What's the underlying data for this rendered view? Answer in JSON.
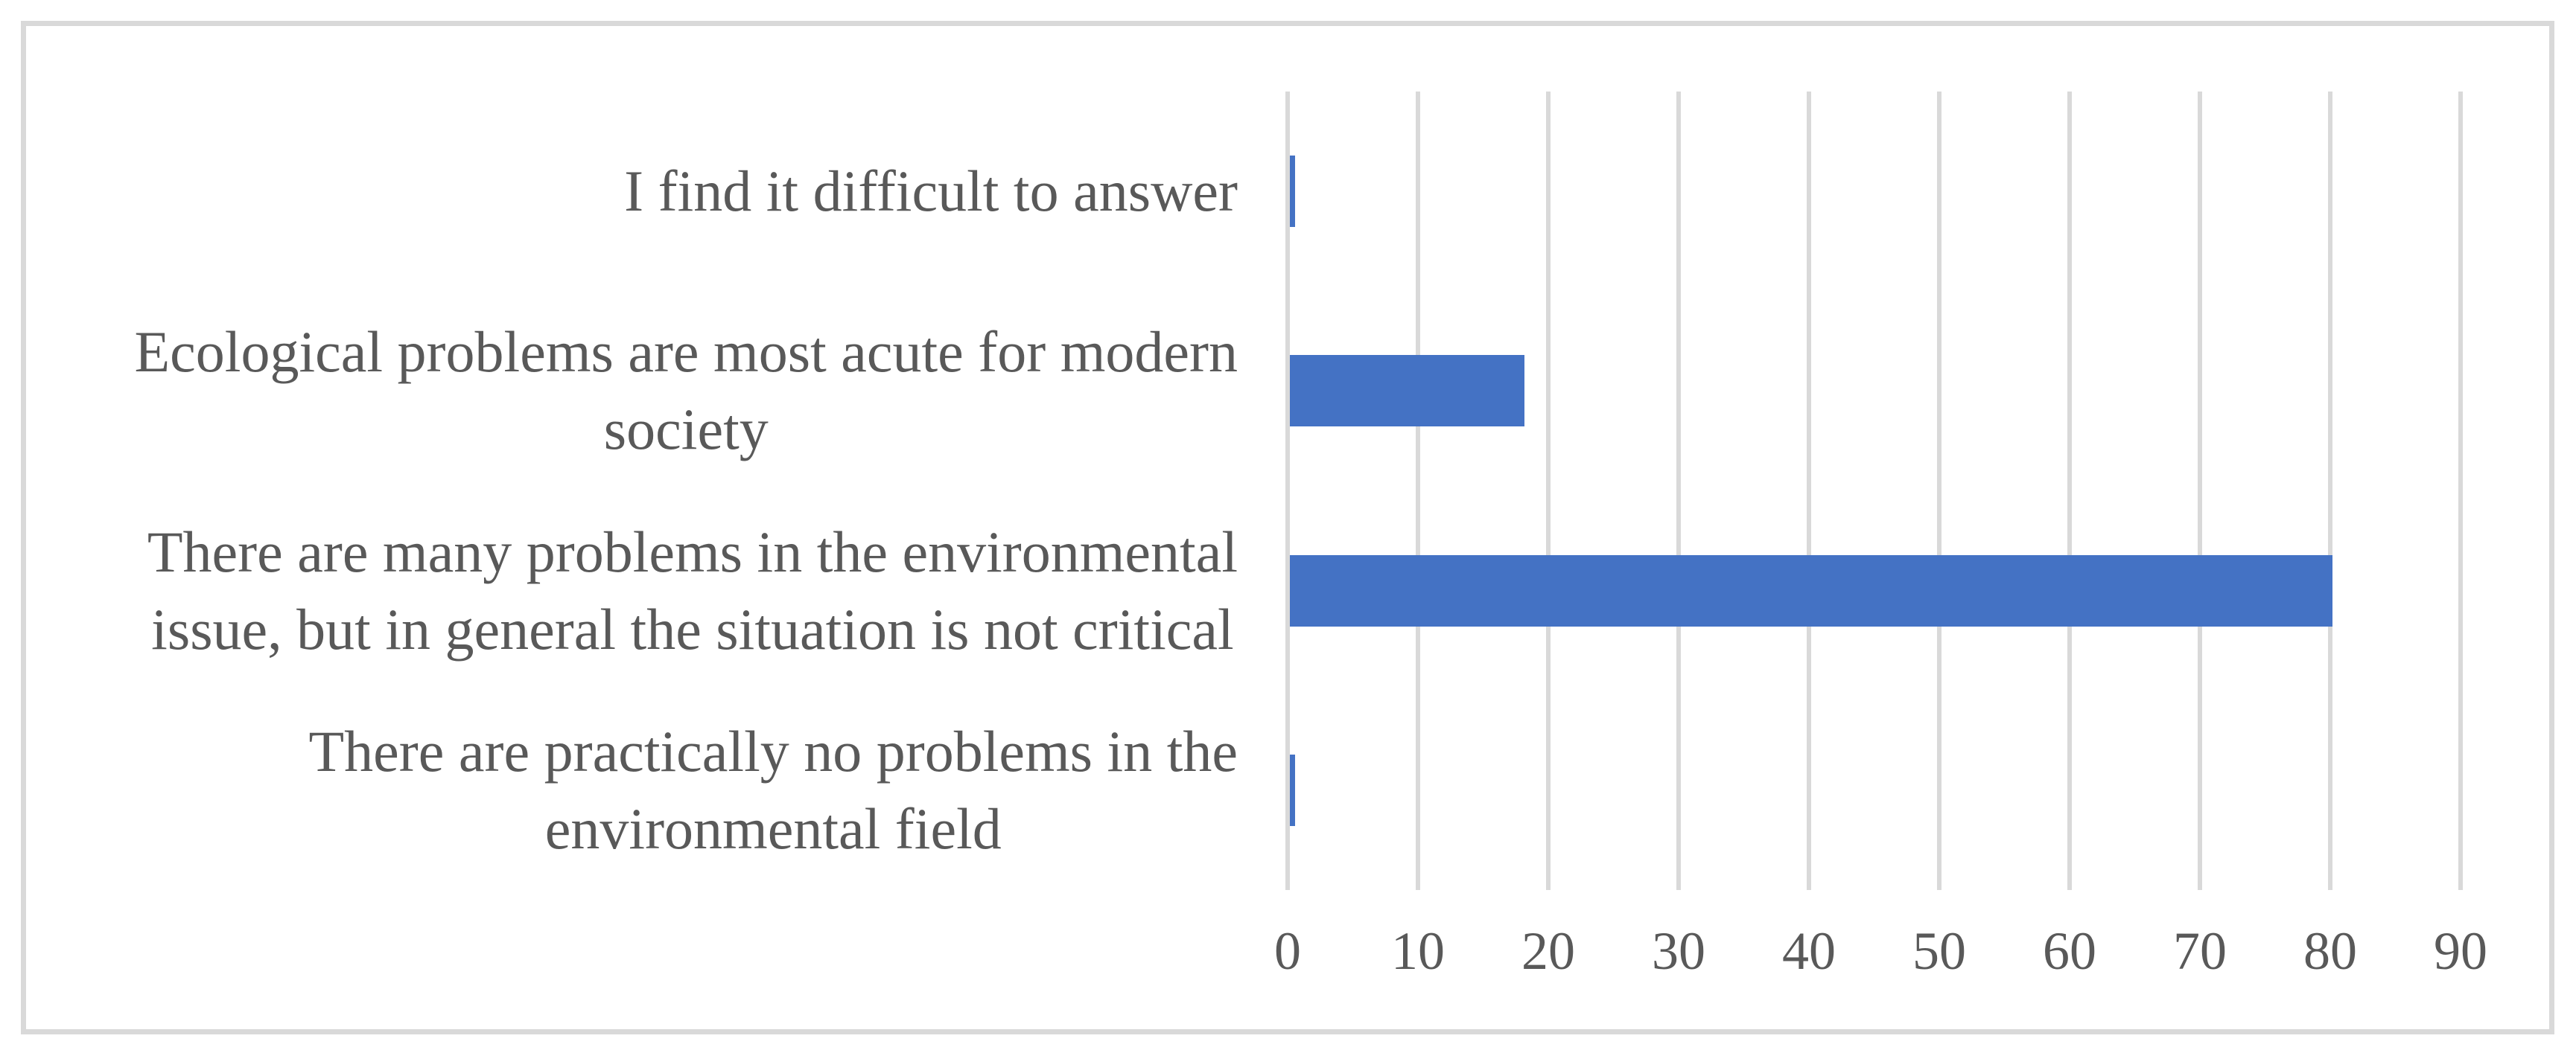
{
  "chart_data": {
    "type": "bar",
    "orientation": "horizontal",
    "title": "",
    "categories": [
      "I find it difficult to answer",
      "Ecological problems are most acute for modern society",
      "There are many problems in the environmental issue, but in general the situation is not critical",
      "There are practically no problems in the environmental field"
    ],
    "category_label_lines": [
      [
        "I find it difficult to answer"
      ],
      [
        "Ecological problems are most acute for modern",
        "society"
      ],
      [
        "There are many problems in the environmental",
        "issue, but in general the situation is not critical"
      ],
      [
        "There are practically no problems in the",
        "environmental field"
      ]
    ],
    "values": [
      0.4,
      18,
      80,
      0.4
    ],
    "xlim": [
      0,
      90
    ],
    "x_ticks": [
      0,
      10,
      20,
      30,
      40,
      50,
      60,
      70,
      80,
      90
    ],
    "grid": "vertical",
    "legend": "none",
    "colors": {
      "bar": "#4472C4",
      "gridline": "#D9D9D9",
      "frame_border": "#D9D9D9",
      "text": "#595959",
      "background": "#FFFFFF"
    }
  }
}
